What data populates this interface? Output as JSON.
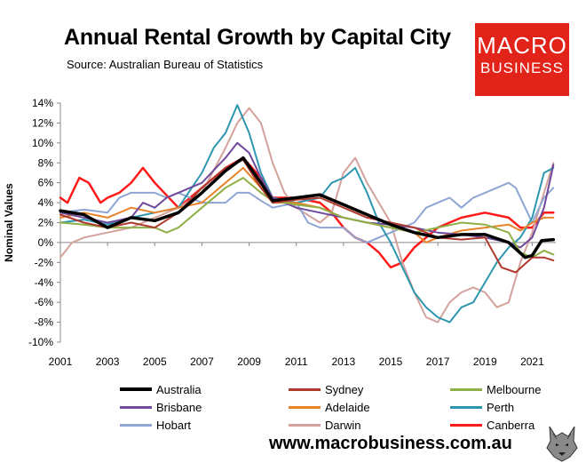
{
  "header": {
    "title": "Annual Rental Growth by Capital City",
    "subtitle": "Source: Australian Bureau of Statistics"
  },
  "logo": {
    "line1": "MACRO",
    "line2": "BUSINESS",
    "color": "#e2231a"
  },
  "footer": {
    "url": "www.macrobusiness.com.au",
    "icon": "wolf-icon"
  },
  "chart_data": {
    "type": "line",
    "title": "Annual Rental Growth by Capital City",
    "xlabel": "",
    "ylabel": "Nominal Values",
    "xlim": [
      2001,
      2022
    ],
    "ylim": [
      -10,
      14
    ],
    "yticks": [
      14,
      12,
      10,
      8,
      6,
      4,
      2,
      0,
      -2,
      -4,
      -6,
      -8,
      -10
    ],
    "ytick_labels": [
      "14%",
      "12%",
      "10%",
      "8%",
      "6%",
      "4%",
      "2%",
      "0%",
      "-2%",
      "-4%",
      "-6%",
      "-8%",
      "-10%"
    ],
    "xticks": [
      2001,
      2003,
      2005,
      2007,
      2009,
      2011,
      2013,
      2015,
      2017,
      2019,
      2021
    ],
    "xtick_labels": [
      "2001",
      "2003",
      "2005",
      "2007",
      "2009",
      "2011",
      "2013",
      "2015",
      "2017",
      "2019",
      "2021"
    ],
    "grid": false,
    "legend_position": "bottom",
    "series": [
      {
        "name": "Australia",
        "color": "#000000",
        "width": 3.5,
        "points": [
          [
            2001,
            3.2
          ],
          [
            2002,
            2.8
          ],
          [
            2003,
            1.5
          ],
          [
            2004,
            2.5
          ],
          [
            2005,
            2.2
          ],
          [
            2006,
            3.0
          ],
          [
            2007,
            5.0
          ],
          [
            2008,
            7.2
          ],
          [
            2008.75,
            8.5
          ],
          [
            2009.5,
            6.0
          ],
          [
            2010,
            4.2
          ],
          [
            2011,
            4.5
          ],
          [
            2012,
            4.8
          ],
          [
            2013,
            3.8
          ],
          [
            2014,
            2.8
          ],
          [
            2015,
            1.8
          ],
          [
            2016,
            1.0
          ],
          [
            2017,
            0.5
          ],
          [
            2018,
            0.8
          ],
          [
            2019,
            0.8
          ],
          [
            2020,
            0.0
          ],
          [
            2020.7,
            -1.5
          ],
          [
            2021,
            -1.3
          ],
          [
            2021.4,
            0.2
          ],
          [
            2021.9,
            0.3
          ]
        ]
      },
      {
        "name": "Sydney",
        "color": "#b03a2e",
        "width": 2,
        "points": [
          [
            2001,
            2.8
          ],
          [
            2002,
            2.0
          ],
          [
            2003,
            1.5
          ],
          [
            2004,
            2.0
          ],
          [
            2005,
            1.5
          ],
          [
            2006,
            3.0
          ],
          [
            2007,
            5.5
          ],
          [
            2008,
            7.5
          ],
          [
            2008.75,
            8.3
          ],
          [
            2009.5,
            5.5
          ],
          [
            2010,
            4.0
          ],
          [
            2011,
            4.3
          ],
          [
            2012,
            4.5
          ],
          [
            2013,
            3.5
          ],
          [
            2014,
            2.5
          ],
          [
            2015,
            2.0
          ],
          [
            2016,
            1.5
          ],
          [
            2017,
            0.5
          ],
          [
            2018,
            0.3
          ],
          [
            2019,
            0.5
          ],
          [
            2019.7,
            -2.5
          ],
          [
            2020.3,
            -3.0
          ],
          [
            2021,
            -1.5
          ],
          [
            2021.5,
            -1.5
          ],
          [
            2021.9,
            -1.8
          ]
        ]
      },
      {
        "name": "Melbourne",
        "color": "#8fb046",
        "width": 2,
        "points": [
          [
            2001,
            2.0
          ],
          [
            2002,
            1.8
          ],
          [
            2003,
            1.5
          ],
          [
            2004,
            1.5
          ],
          [
            2005,
            1.5
          ],
          [
            2005.5,
            1.0
          ],
          [
            2006,
            1.5
          ],
          [
            2007,
            3.5
          ],
          [
            2008,
            5.5
          ],
          [
            2008.75,
            6.5
          ],
          [
            2009.5,
            5.0
          ],
          [
            2010,
            4.2
          ],
          [
            2011,
            3.8
          ],
          [
            2012,
            3.5
          ],
          [
            2013,
            2.5
          ],
          [
            2014,
            2.0
          ],
          [
            2015,
            1.5
          ],
          [
            2016,
            1.0
          ],
          [
            2017,
            1.5
          ],
          [
            2018,
            2.0
          ],
          [
            2019,
            1.8
          ],
          [
            2020,
            1.0
          ],
          [
            2020.5,
            -1.0
          ],
          [
            2021,
            -1.5
          ],
          [
            2021.5,
            -0.8
          ],
          [
            2021.9,
            -1.2
          ]
        ]
      },
      {
        "name": "Brisbane",
        "color": "#6f4a9c",
        "width": 2,
        "points": [
          [
            2001,
            3.0
          ],
          [
            2002,
            2.5
          ],
          [
            2003,
            2.0
          ],
          [
            2004,
            2.5
          ],
          [
            2004.5,
            4.0
          ],
          [
            2005,
            3.5
          ],
          [
            2005.5,
            4.5
          ],
          [
            2006,
            5.0
          ],
          [
            2006.5,
            5.5
          ],
          [
            2007,
            6.0
          ],
          [
            2008,
            8.5
          ],
          [
            2008.5,
            10.0
          ],
          [
            2009,
            9.0
          ],
          [
            2009.5,
            6.5
          ],
          [
            2010,
            4.5
          ],
          [
            2011,
            3.5
          ],
          [
            2012,
            3.0
          ],
          [
            2013,
            2.5
          ],
          [
            2014,
            2.0
          ],
          [
            2015,
            1.8
          ],
          [
            2016,
            1.5
          ],
          [
            2017,
            1.0
          ],
          [
            2018,
            0.8
          ],
          [
            2019,
            0.5
          ],
          [
            2020,
            0.0
          ],
          [
            2020.5,
            -0.5
          ],
          [
            2021,
            0.5
          ],
          [
            2021.5,
            3.5
          ],
          [
            2021.9,
            7.8
          ]
        ]
      },
      {
        "name": "Adelaide",
        "color": "#e8832a",
        "width": 2,
        "points": [
          [
            2001,
            2.5
          ],
          [
            2002,
            3.0
          ],
          [
            2003,
            2.5
          ],
          [
            2004,
            3.5
          ],
          [
            2005,
            3.0
          ],
          [
            2006,
            3.5
          ],
          [
            2007,
            4.0
          ],
          [
            2008,
            6.0
          ],
          [
            2008.75,
            7.5
          ],
          [
            2009.5,
            5.5
          ],
          [
            2010,
            4.0
          ],
          [
            2011,
            4.0
          ],
          [
            2012,
            3.5
          ],
          [
            2013,
            2.5
          ],
          [
            2014,
            2.0
          ],
          [
            2015,
            1.5
          ],
          [
            2016,
            1.0
          ],
          [
            2016.5,
            0.0
          ],
          [
            2017,
            0.5
          ],
          [
            2018,
            1.2
          ],
          [
            2019,
            1.5
          ],
          [
            2020,
            1.8
          ],
          [
            2020.5,
            1.2
          ],
          [
            2021,
            2.0
          ],
          [
            2021.5,
            2.5
          ],
          [
            2021.9,
            2.5
          ]
        ]
      },
      {
        "name": "Perth",
        "color": "#2e97b0",
        "width": 2,
        "points": [
          [
            2001,
            2.0
          ],
          [
            2002,
            2.3
          ],
          [
            2003,
            1.8
          ],
          [
            2004,
            2.5
          ],
          [
            2005,
            3.0
          ],
          [
            2006,
            3.5
          ],
          [
            2007,
            7.0
          ],
          [
            2007.5,
            9.5
          ],
          [
            2008,
            11.0
          ],
          [
            2008.5,
            13.8
          ],
          [
            2009,
            11.0
          ],
          [
            2009.5,
            7.0
          ],
          [
            2010,
            4.5
          ],
          [
            2011,
            4.0
          ],
          [
            2012,
            4.5
          ],
          [
            2012.5,
            6.0
          ],
          [
            2013,
            6.5
          ],
          [
            2013.5,
            7.5
          ],
          [
            2014,
            5.0
          ],
          [
            2014.5,
            2.0
          ],
          [
            2015,
            0.0
          ],
          [
            2015.5,
            -2.5
          ],
          [
            2016,
            -5.0
          ],
          [
            2016.5,
            -6.5
          ],
          [
            2017,
            -7.5
          ],
          [
            2017.5,
            -8.0
          ],
          [
            2018,
            -6.5
          ],
          [
            2018.5,
            -6.0
          ],
          [
            2019,
            -4.0
          ],
          [
            2019.5,
            -2.0
          ],
          [
            2020,
            -0.5
          ],
          [
            2020.5,
            0.5
          ],
          [
            2021,
            2.5
          ],
          [
            2021.5,
            7.0
          ],
          [
            2021.9,
            7.5
          ]
        ]
      },
      {
        "name": "Hobart",
        "color": "#8ea6d4",
        "width": 2,
        "points": [
          [
            2001,
            3.0
          ],
          [
            2002,
            3.3
          ],
          [
            2003,
            3.0
          ],
          [
            2003.5,
            4.5
          ],
          [
            2004,
            5.0
          ],
          [
            2005,
            5.0
          ],
          [
            2005.5,
            4.5
          ],
          [
            2006,
            5.0
          ],
          [
            2007,
            4.0
          ],
          [
            2008,
            4.0
          ],
          [
            2008.5,
            5.0
          ],
          [
            2009,
            5.0
          ],
          [
            2009.5,
            4.2
          ],
          [
            2010,
            3.5
          ],
          [
            2011,
            4.0
          ],
          [
            2011.5,
            2.0
          ],
          [
            2012,
            1.5
          ],
          [
            2013,
            1.5
          ],
          [
            2013.5,
            0.5
          ],
          [
            2014,
            0.0
          ],
          [
            2014.5,
            0.5
          ],
          [
            2015,
            1.0
          ],
          [
            2016,
            2.0
          ],
          [
            2016.5,
            3.5
          ],
          [
            2017,
            4.0
          ],
          [
            2017.5,
            4.5
          ],
          [
            2018,
            3.5
          ],
          [
            2018.5,
            4.5
          ],
          [
            2019,
            5.0
          ],
          [
            2019.5,
            5.5
          ],
          [
            2020,
            6.0
          ],
          [
            2020.3,
            5.5
          ],
          [
            2020.7,
            3.5
          ],
          [
            2021,
            2.0
          ],
          [
            2021.5,
            4.5
          ],
          [
            2021.9,
            5.5
          ]
        ]
      },
      {
        "name": "Darwin",
        "color": "#d4a29c",
        "width": 2,
        "points": [
          [
            2001,
            -1.5
          ],
          [
            2001.5,
            0.0
          ],
          [
            2002,
            0.5
          ],
          [
            2003,
            1.0
          ],
          [
            2004,
            1.5
          ],
          [
            2005,
            2.5
          ],
          [
            2006,
            3.5
          ],
          [
            2007,
            5.0
          ],
          [
            2008,
            9.5
          ],
          [
            2008.5,
            12.0
          ],
          [
            2009,
            13.5
          ],
          [
            2009.5,
            12.0
          ],
          [
            2010,
            8.0
          ],
          [
            2010.5,
            5.0
          ],
          [
            2011,
            3.5
          ],
          [
            2012,
            2.0
          ],
          [
            2012.5,
            3.0
          ],
          [
            2013,
            7.0
          ],
          [
            2013.5,
            8.5
          ],
          [
            2014,
            6.0
          ],
          [
            2014.5,
            4.0
          ],
          [
            2015,
            2.0
          ],
          [
            2015.5,
            -2.0
          ],
          [
            2016,
            -5.0
          ],
          [
            2016.5,
            -7.5
          ],
          [
            2017,
            -8.0
          ],
          [
            2017.5,
            -6.0
          ],
          [
            2018,
            -5.0
          ],
          [
            2018.5,
            -4.5
          ],
          [
            2019,
            -5.0
          ],
          [
            2019.5,
            -6.5
          ],
          [
            2020,
            -6.0
          ],
          [
            2020.5,
            -2.0
          ],
          [
            2021,
            1.0
          ],
          [
            2021.5,
            5.0
          ],
          [
            2021.9,
            8.0
          ]
        ]
      },
      {
        "name": "Canberra",
        "color": "#ff1a1a",
        "width": 2.5,
        "points": [
          [
            2001,
            4.5
          ],
          [
            2001.3,
            4.0
          ],
          [
            2001.8,
            6.5
          ],
          [
            2002.2,
            6.0
          ],
          [
            2002.7,
            4.0
          ],
          [
            2003,
            4.5
          ],
          [
            2003.5,
            5.0
          ],
          [
            2004,
            6.0
          ],
          [
            2004.5,
            7.5
          ],
          [
            2005,
            6.0
          ],
          [
            2006,
            3.5
          ],
          [
            2007,
            5.5
          ],
          [
            2008,
            7.5
          ],
          [
            2008.75,
            8.5
          ],
          [
            2009.5,
            6.5
          ],
          [
            2010,
            4.5
          ],
          [
            2011,
            4.5
          ],
          [
            2012,
            4.0
          ],
          [
            2012.5,
            3.0
          ],
          [
            2013,
            1.5
          ],
          [
            2013.5,
            0.5
          ],
          [
            2014,
            0.0
          ],
          [
            2014.5,
            -1.0
          ],
          [
            2015,
            -2.5
          ],
          [
            2015.5,
            -2.0
          ],
          [
            2016,
            -0.5
          ],
          [
            2016.5,
            0.5
          ],
          [
            2017,
            1.5
          ],
          [
            2018,
            2.5
          ],
          [
            2019,
            3.0
          ],
          [
            2020,
            2.5
          ],
          [
            2020.5,
            1.5
          ],
          [
            2021,
            1.5
          ],
          [
            2021.5,
            3.0
          ],
          [
            2021.9,
            3.0
          ]
        ]
      }
    ]
  }
}
